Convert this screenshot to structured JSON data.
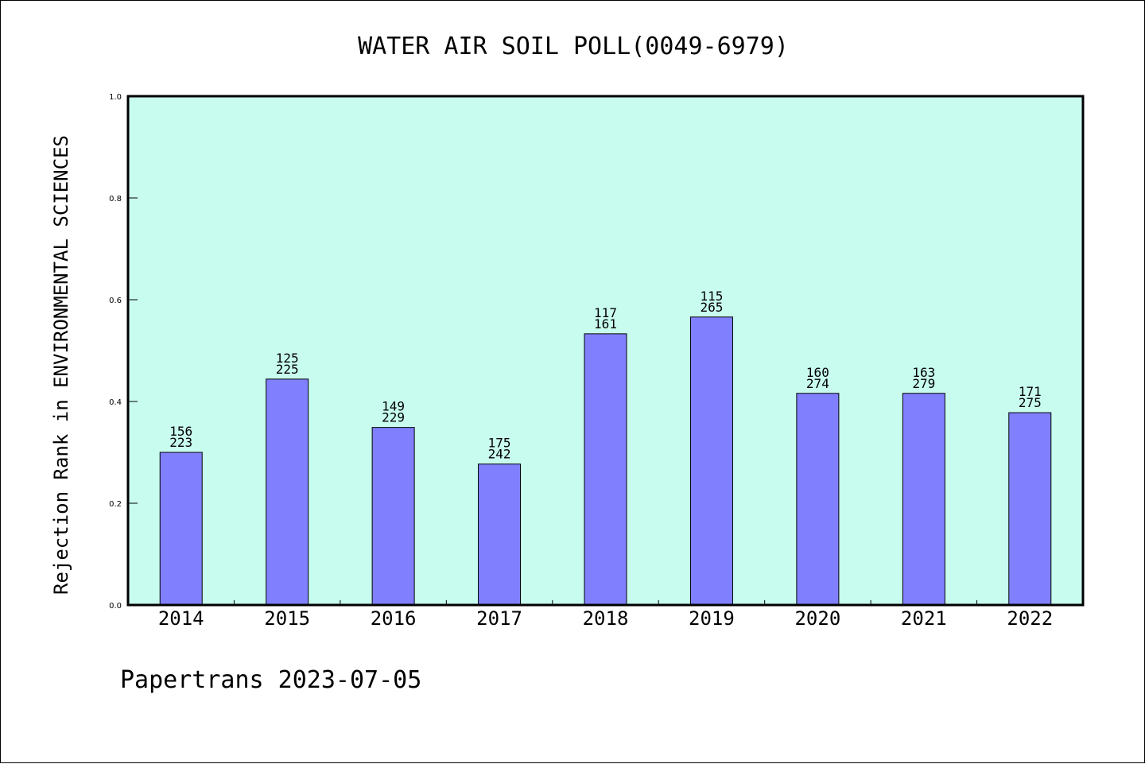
{
  "chart_data": {
    "type": "bar",
    "title": "WATER AIR SOIL POLL(0049-6979)",
    "xlabel": "",
    "ylabel": "Rejection Rank in ENVIRONMENTAL SCIENCES",
    "ylim": [
      0,
      1.0
    ],
    "yticks": [
      "0.0",
      "0.2",
      "0.4",
      "0.6",
      "0.8",
      "1.0"
    ],
    "categories": [
      "2014",
      "2015",
      "2016",
      "2017",
      "2018",
      "2019",
      "2020",
      "2021",
      "2022"
    ],
    "values": [
      0.3,
      0.444,
      0.349,
      0.277,
      0.533,
      0.566,
      0.416,
      0.416,
      0.378
    ],
    "annotations": [
      {
        "top": "156",
        "bottom": "223"
      },
      {
        "top": "125",
        "bottom": "225"
      },
      {
        "top": "149",
        "bottom": "229"
      },
      {
        "top": "175",
        "bottom": "242"
      },
      {
        "top": "117",
        "bottom": "161"
      },
      {
        "top": "115",
        "bottom": "265"
      },
      {
        "top": "160",
        "bottom": "274"
      },
      {
        "top": "163",
        "bottom": "279"
      },
      {
        "top": "171",
        "bottom": "275"
      }
    ],
    "colors": {
      "plot_background": "#c8fcef",
      "bar_fill": "#8080ff",
      "bar_edge": "#000000"
    },
    "grid": false
  },
  "footer": "Papertrans 2023-07-05"
}
